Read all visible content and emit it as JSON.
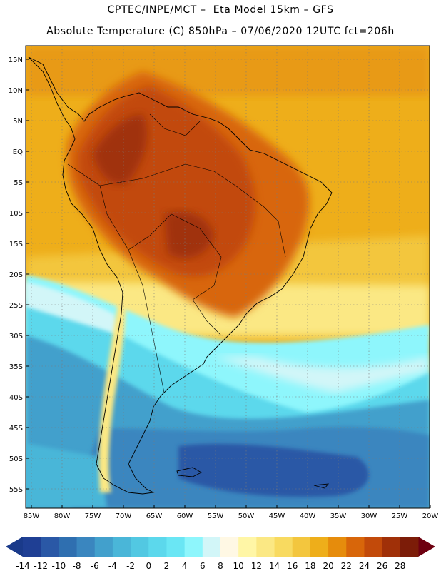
{
  "header": {
    "line1": "CPTEC/INPE/MCT –  Eta Model 15km – GFS",
    "line2": "Absolute Temperature (C) 850hPa – 07/06/2020 12UTC fct=206h"
  },
  "map": {
    "lat_labels": [
      "15N",
      "10N",
      "5N",
      "EQ",
      "5S",
      "10S",
      "15S",
      "20S",
      "25S",
      "30S",
      "35S",
      "40S",
      "45S",
      "50S",
      "55S"
    ],
    "lon_labels": [
      "85W",
      "80W",
      "75W",
      "70W",
      "65W",
      "60W",
      "55W",
      "50W",
      "45W",
      "40W",
      "35W",
      "30W",
      "25W",
      "20W"
    ]
  },
  "colorbar": {
    "labels": [
      "-14",
      "-12",
      "-10",
      "-8",
      "-6",
      "-4",
      "-2",
      "0",
      "2",
      "4",
      "6",
      "8",
      "10",
      "12",
      "14",
      "16",
      "18",
      "20",
      "22",
      "24",
      "26",
      "28"
    ],
    "low_color": "#1a3a8a",
    "high_color": "#6e0010",
    "colors": [
      "#1f3f94",
      "#2a58a6",
      "#2f6fb0",
      "#3a86bf",
      "#42a0cc",
      "#4ab6d8",
      "#52c8e2",
      "#5cd8ec",
      "#6ae6f4",
      "#8ef6fc",
      "#d2f6f8",
      "#fff8e4",
      "#fff6a6",
      "#fbe884",
      "#f8da60",
      "#f3c63e",
      "#eeae1a",
      "#e68c0c",
      "#d8660a",
      "#c24a0a",
      "#a03008",
      "#7c1c08"
    ]
  }
}
